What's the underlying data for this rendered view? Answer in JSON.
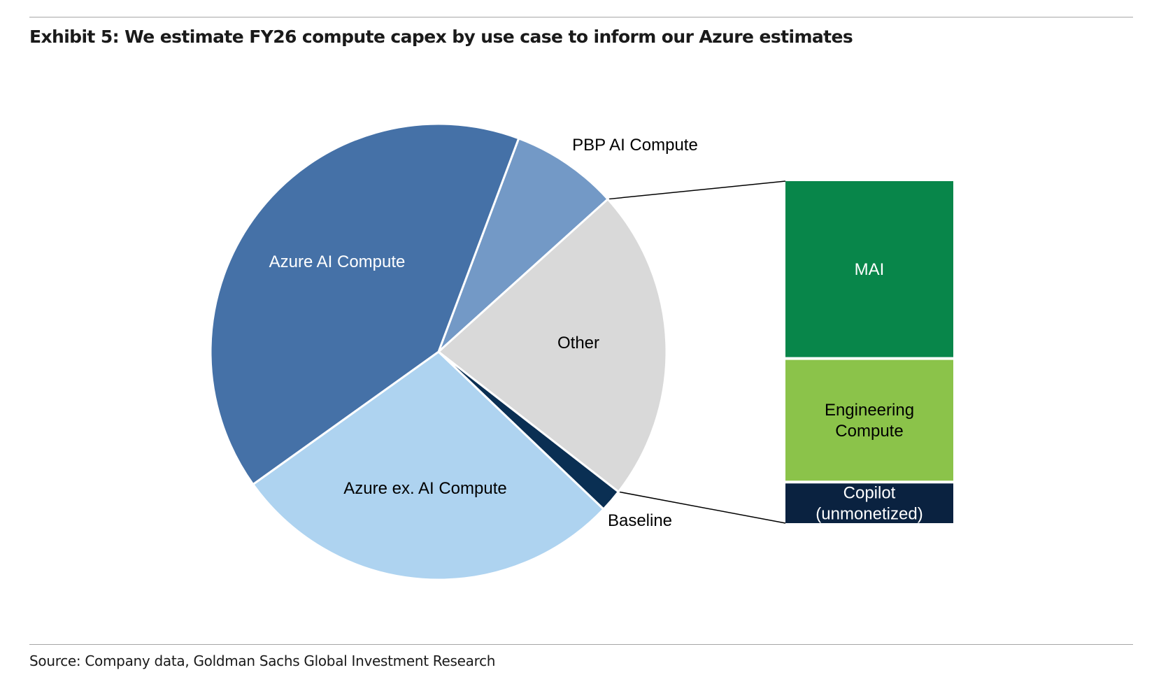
{
  "title": "Exhibit 5: We estimate FY26 compute capex by use case to inform our Azure estimates",
  "source": "Source: Company data, Goldman Sachs Global Investment Research",
  "chart_data": {
    "type": "pie",
    "pie": {
      "slices": [
        {
          "label": "PBP AI Compute",
          "value": 7.6,
          "color": "#7399c6",
          "text_color": "#000000"
        },
        {
          "label": "Other",
          "value": 22.2,
          "color": "#d9d9d9",
          "text_color": "#000000"
        },
        {
          "label": "Baseline",
          "value": 1.6,
          "color": "#0a2f53",
          "text_color": "#000000"
        },
        {
          "label": "Azure ex. AI Compute",
          "value": 28.0,
          "color": "#aed3f0",
          "text_color": "#000000"
        },
        {
          "label": "Azure AI Compute",
          "value": 40.6,
          "color": "#4571a7",
          "text_color": "#ffffff"
        }
      ]
    },
    "breakdown_of": "Other",
    "breakdown": {
      "type": "stacked-bar",
      "segments": [
        {
          "label": "MAI",
          "value": 10.2,
          "color": "#08864a",
          "text_color": "#ffffff"
        },
        {
          "label": "Engineering Compute",
          "lines": [
            "Engineering",
            "Compute"
          ],
          "value": 7.0,
          "color": "#8bc34a",
          "text_color": "#000000"
        },
        {
          "label": "Copilot (unmonetized)",
          "lines": [
            "Copilot",
            "(unmonetized)"
          ],
          "value": 2.3,
          "color": "#0a2240",
          "text_color": "#ffffff"
        }
      ]
    }
  }
}
